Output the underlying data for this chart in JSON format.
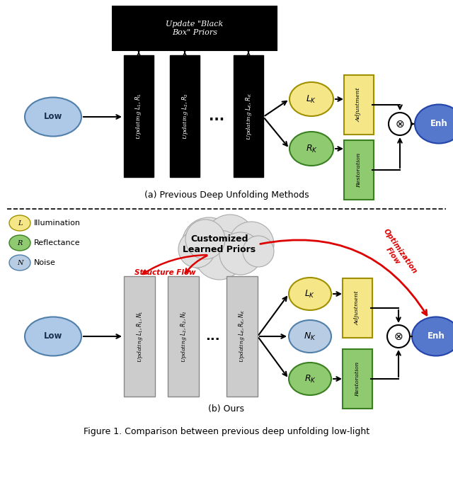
{
  "fig_width": 6.4,
  "fig_height": 6.75,
  "bg_color": "#ffffff",
  "title_a": "(a) Previous Deep Unfolding Methods",
  "title_b": "(b) Ours",
  "caption": "Figure 1. Comparison between previous deep unfolding low-light",
  "black_box_color": "#000000",
  "block_a_color": "#000000",
  "block_b_color": "#cccccc",
  "block_b_edge": "#888888",
  "yellow_color": "#f5e788",
  "yellow_edge": "#a09000",
  "green_color": "#8fca70",
  "green_edge": "#3a8020",
  "blue_low_color": "#aec8e8",
  "blue_low_edge": "#5080aa",
  "blue_enh_color": "#5577cc",
  "blue_enh_edge": "#2244aa",
  "noise_color": "#b8cce4",
  "noise_edge": "#6080aa",
  "cloud_color": "#e0e0e0",
  "cloud_edge": "#aaaaaa",
  "red_color": "#dd0000"
}
